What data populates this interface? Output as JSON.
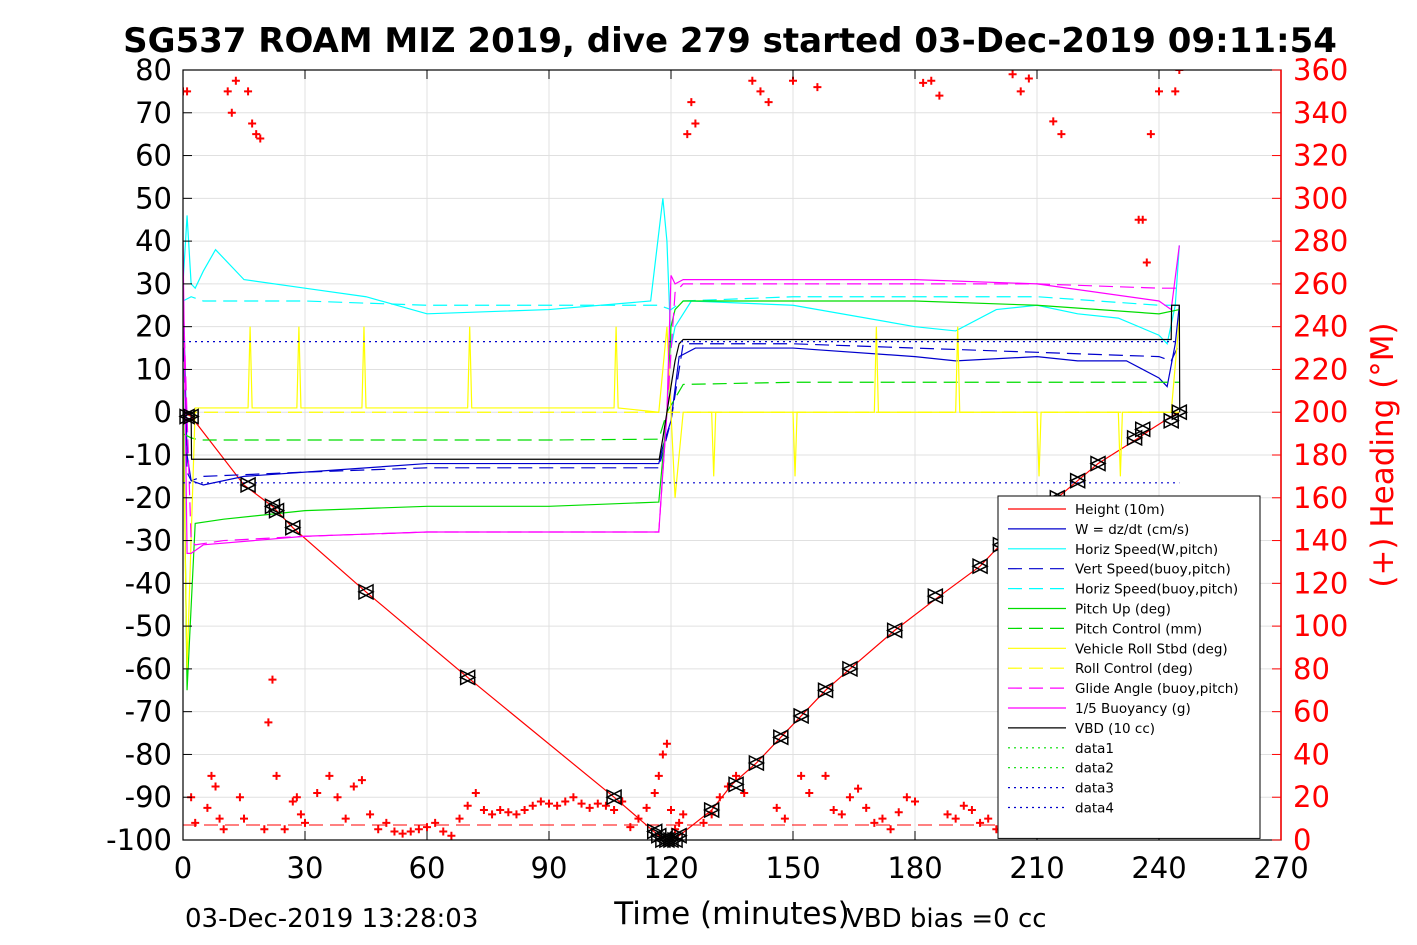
{
  "chart_data": {
    "type": "line",
    "title": "SG537 ROAM MIZ 2019, dive 279 started 03-Dec-2019 09:11:54",
    "xlabel": "Time (minutes)",
    "ylabel_right": "(+) Heading (°M)",
    "xlim": [
      0,
      270
    ],
    "ylim_left": [
      -100,
      80
    ],
    "ylim_right": [
      0,
      360
    ],
    "xticks": [
      0,
      30,
      60,
      90,
      120,
      150,
      180,
      210,
      240,
      270
    ],
    "yticks_left": [
      80,
      70,
      60,
      50,
      40,
      30,
      20,
      10,
      0,
      -10,
      -20,
      -30,
      -40,
      -50,
      -60,
      -70,
      -80,
      -90,
      -100
    ],
    "yticks_right": [
      360,
      340,
      320,
      300,
      280,
      260,
      240,
      220,
      200,
      180,
      160,
      140,
      120,
      100,
      80,
      60,
      40,
      20,
      0
    ],
    "grid": true,
    "legend_position": "lower-right",
    "footer_left": "03-Dec-2019 13:28:03",
    "footer_right": "VBD bias =0 cc",
    "colors": {
      "heading": "#ff0000",
      "red": "#ff0000",
      "blue": "#0000cd",
      "cyan": "#00ffff",
      "green": "#00dd00",
      "yellow": "#ffff00",
      "magenta": "#ff00ff",
      "black": "#000000"
    },
    "series": [
      {
        "name": "Height (10m)",
        "color": "#ff0000",
        "style": "solid",
        "x": [
          0,
          2,
          15,
          22,
          27,
          45,
          70,
          106,
          117,
          120,
          122,
          130,
          135,
          141,
          147,
          153,
          158,
          164,
          175,
          186,
          196,
          200,
          210,
          215,
          220,
          225,
          235,
          238,
          243,
          245
        ],
        "y": [
          0,
          -1,
          -17,
          -22,
          -27,
          -42,
          -62,
          -90,
          -99,
          -100,
          -99,
          -93,
          -87,
          -82,
          -76,
          -70,
          -65,
          -60,
          -51,
          -43,
          -36,
          -32,
          -25,
          -20,
          -16,
          -12,
          -6,
          -4,
          -1,
          0
        ]
      },
      {
        "name": "W = dz/dt (cm/s)",
        "color": "#0000cd",
        "style": "solid",
        "x": [
          0,
          1,
          2,
          5,
          15,
          30,
          60,
          90,
          117,
          118,
          120,
          122,
          126,
          150,
          180,
          190,
          210,
          220,
          232,
          240,
          242,
          244,
          245
        ],
        "y": [
          30,
          -10,
          -16,
          -17,
          -15,
          -14,
          -12,
          -12,
          -12,
          -8,
          -2,
          13,
          15,
          15,
          13,
          12,
          13,
          12,
          12,
          8,
          6,
          16,
          25
        ]
      },
      {
        "name": "Horiz Speed(W,pitch)",
        "color": "#00ffff",
        "style": "solid",
        "x": [
          0,
          1,
          2,
          3,
          5,
          8,
          15,
          30,
          45,
          60,
          90,
          115,
          118,
          119,
          120,
          121,
          123,
          125,
          150,
          180,
          190,
          200,
          210,
          220,
          230,
          240,
          242,
          244,
          245
        ],
        "y": [
          30,
          46,
          30,
          29,
          33,
          38,
          31,
          29,
          27,
          23,
          24,
          26,
          50,
          40,
          15,
          20,
          23,
          26,
          25,
          20,
          19,
          24,
          25,
          23,
          22,
          18,
          16,
          25,
          39
        ]
      },
      {
        "name": "Vert Speed(buoy,pitch)",
        "color": "#0000cd",
        "style": "dashed",
        "x": [
          0,
          1,
          2,
          5,
          30,
          60,
          90,
          117,
          120,
          123,
          150,
          180,
          210,
          240,
          243,
          245
        ],
        "y": [
          20,
          -14,
          -16,
          -15,
          -14,
          -13,
          -13,
          -13,
          -2,
          16,
          16,
          15,
          14,
          13,
          12,
          16
        ]
      },
      {
        "name": "Horiz Speed(buoy,pitch)",
        "color": "#00ffff",
        "style": "dashed",
        "x": [
          0,
          2,
          5,
          30,
          60,
          90,
          117,
          120,
          123,
          150,
          180,
          210,
          240,
          245
        ],
        "y": [
          26,
          27,
          26,
          26,
          25,
          25,
          25,
          24,
          26,
          27,
          27,
          27,
          25,
          25
        ]
      },
      {
        "name": "Pitch Up (deg)",
        "color": "#00dd00",
        "style": "solid",
        "x": [
          0,
          1,
          3,
          10,
          30,
          60,
          90,
          117,
          119,
          120,
          121,
          123,
          150,
          180,
          210,
          240,
          245
        ],
        "y": [
          10,
          -65,
          -26,
          -25,
          -23,
          -22,
          -22,
          -21,
          0,
          20,
          24,
          26,
          26,
          26,
          25,
          23,
          24
        ]
      },
      {
        "name": "Pitch Control (mm)",
        "color": "#00dd00",
        "style": "dashed",
        "x": [
          0,
          2,
          4,
          30,
          60,
          90,
          117,
          119,
          123,
          150,
          180,
          210,
          240,
          245
        ],
        "y": [
          -5,
          -6,
          -6.5,
          -6.5,
          -6.5,
          -6.5,
          -6.3,
          0,
          6.5,
          7,
          7,
          7,
          7,
          7
        ]
      },
      {
        "name": "Vehicle Roll Stbd (deg)",
        "color": "#ffff00",
        "style": "solid",
        "x": [
          0,
          1,
          3,
          16,
          16.5,
          17,
          28,
          28.5,
          29,
          44,
          44.5,
          45,
          70,
          70.5,
          71,
          106,
          106.5,
          107,
          117,
          119,
          121,
          123,
          130,
          130.5,
          131,
          150,
          150.5,
          151,
          170,
          170.5,
          171,
          190,
          190.5,
          191,
          210,
          210.5,
          211,
          230,
          230.5,
          231,
          243,
          245
        ],
        "y": [
          0,
          -60,
          1,
          1,
          20,
          1,
          1,
          20,
          1,
          1,
          20,
          1,
          1,
          20,
          1,
          1,
          20,
          1,
          0,
          20,
          -20,
          0,
          0,
          -15,
          0,
          0,
          -15,
          0,
          0,
          20,
          0,
          0,
          20,
          0,
          0,
          -15,
          0,
          0,
          -15,
          0,
          0,
          22
        ]
      },
      {
        "name": "Roll Control (deg)",
        "color": "#ffff00",
        "style": "dashed",
        "x": [
          0,
          245
        ],
        "y": [
          0,
          0
        ]
      },
      {
        "name": "Glide Angle (buoy,pitch)",
        "color": "#ff00ff",
        "style": "dashed",
        "x": [
          0,
          2,
          3,
          10,
          30,
          60,
          90,
          117,
          119,
          121,
          123,
          150,
          180,
          210,
          240,
          245
        ],
        "y": [
          28,
          -30,
          -31,
          -30,
          -29,
          -28,
          -28,
          -28,
          0,
          28,
          30,
          30,
          30,
          30,
          29,
          29
        ]
      },
      {
        "name": "1/5 Buoyancy (g)",
        "color": "#ff00ff",
        "style": "solid",
        "x": [
          0,
          1,
          2,
          5,
          30,
          60,
          90,
          117,
          119,
          120,
          121,
          123,
          150,
          180,
          210,
          240,
          243,
          245
        ],
        "y": [
          40,
          -33,
          -33,
          -31,
          -29,
          -28,
          -28,
          -28,
          0,
          32,
          30,
          31,
          31,
          31,
          30,
          26,
          24,
          39
        ]
      },
      {
        "name": "VBD (10 cc)",
        "color": "#000000",
        "style": "solid",
        "x": [
          0,
          2,
          2.1,
          117,
          117.1,
          118,
          119,
          120,
          121,
          122,
          123,
          243,
          243.1,
          245,
          245.1
        ],
        "y": [
          0,
          0,
          -11,
          -11,
          -11,
          -6,
          0,
          6,
          12,
          16,
          17,
          17,
          25,
          25,
          0
        ]
      },
      {
        "name": "data1",
        "color": "#00dd00",
        "style": "dotted",
        "x": [],
        "y": []
      },
      {
        "name": "data2",
        "color": "#00dd00",
        "style": "dotted",
        "x": [],
        "y": []
      },
      {
        "name": "data3",
        "color": "#0000cd",
        "style": "dotted",
        "x": [
          0,
          245
        ],
        "y": [
          16.5,
          16.5
        ]
      },
      {
        "name": "data4",
        "color": "#0000cd",
        "style": "dotted",
        "x": [
          0,
          245
        ],
        "y": [
          -16.5,
          -16.5
        ]
      }
    ],
    "height_extra_dashes": {
      "color": "#ff0000",
      "x": [
        0,
        245
      ],
      "y": [
        -96.5,
        -96.5
      ]
    },
    "heading_markers": {
      "axis": "right",
      "color": "#ff0000",
      "x": [
        0,
        1,
        2,
        3,
        6,
        7,
        8,
        9,
        10,
        11,
        12,
        13,
        14,
        15,
        16,
        17,
        18,
        19,
        20,
        21,
        22,
        23,
        25,
        27,
        28,
        29,
        30,
        33,
        36,
        38,
        40,
        42,
        44,
        46,
        48,
        50,
        52,
        54,
        56,
        58,
        60,
        62,
        64,
        66,
        68,
        70,
        72,
        74,
        76,
        78,
        80,
        82,
        84,
        86,
        88,
        90,
        92,
        94,
        96,
        98,
        100,
        102,
        104,
        106,
        108,
        110,
        112,
        114,
        116,
        117,
        118,
        119,
        120,
        121,
        122,
        123,
        124,
        125,
        126,
        128,
        130,
        132,
        134,
        136,
        138,
        140,
        142,
        144,
        146,
        148,
        150,
        152,
        154,
        156,
        158,
        160,
        162,
        164,
        166,
        168,
        170,
        172,
        174,
        176,
        178,
        180,
        182,
        184,
        186,
        188,
        190,
        192,
        194,
        196,
        198,
        200,
        202,
        204,
        206,
        208,
        210,
        212,
        214,
        216,
        218,
        220,
        222,
        224,
        226,
        228,
        230,
        232,
        234,
        235,
        236,
        237,
        238,
        240,
        242,
        244,
        245
      ],
      "y": [
        350,
        350,
        20,
        8,
        15,
        30,
        25,
        10,
        5,
        350,
        340,
        355,
        20,
        10,
        350,
        335,
        330,
        328,
        5,
        55,
        75,
        30,
        5,
        18,
        20,
        12,
        8,
        22,
        30,
        20,
        10,
        25,
        28,
        12,
        5,
        8,
        4,
        3,
        4,
        5,
        6,
        8,
        4,
        2,
        10,
        16,
        22,
        14,
        12,
        14,
        13,
        12,
        14,
        16,
        18,
        17,
        16,
        18,
        20,
        17,
        15,
        17,
        16,
        14,
        18,
        6,
        10,
        15,
        22,
        30,
        40,
        45,
        14,
        5,
        8,
        12,
        330,
        345,
        335,
        8,
        12,
        20,
        25,
        30,
        22,
        355,
        350,
        345,
        15,
        10,
        355,
        30,
        22,
        352,
        30,
        14,
        12,
        20,
        24,
        15,
        8,
        10,
        5,
        13,
        20,
        18,
        354,
        355,
        348,
        12,
        10,
        16,
        14,
        8,
        10,
        5,
        10,
        358,
        350,
        356,
        10,
        15,
        336,
        330,
        8,
        12,
        15,
        20,
        18,
        14,
        8,
        10,
        6,
        290,
        290,
        270,
        330,
        350,
        5,
        350,
        360
      ]
    },
    "position_markers": {
      "x": [
        1,
        2,
        16,
        22,
        23,
        27,
        45,
        70,
        106,
        116,
        117,
        118,
        119,
        120,
        121,
        122,
        130,
        136,
        141,
        147,
        152,
        158,
        164,
        175,
        185,
        196,
        201,
        210,
        215,
        220,
        225,
        234,
        236,
        243,
        245
      ],
      "y": [
        -1,
        -1,
        -17,
        -22,
        -23,
        -27,
        -42,
        -62,
        -90,
        -98,
        -99,
        -100,
        -100,
        -100,
        -100,
        -99,
        -93,
        -87,
        -82,
        -76,
        -71,
        -65,
        -60,
        -51,
        -43,
        -36,
        -31,
        -24,
        -20,
        -16,
        -12,
        -6,
        -4,
        -2,
        0
      ]
    }
  }
}
